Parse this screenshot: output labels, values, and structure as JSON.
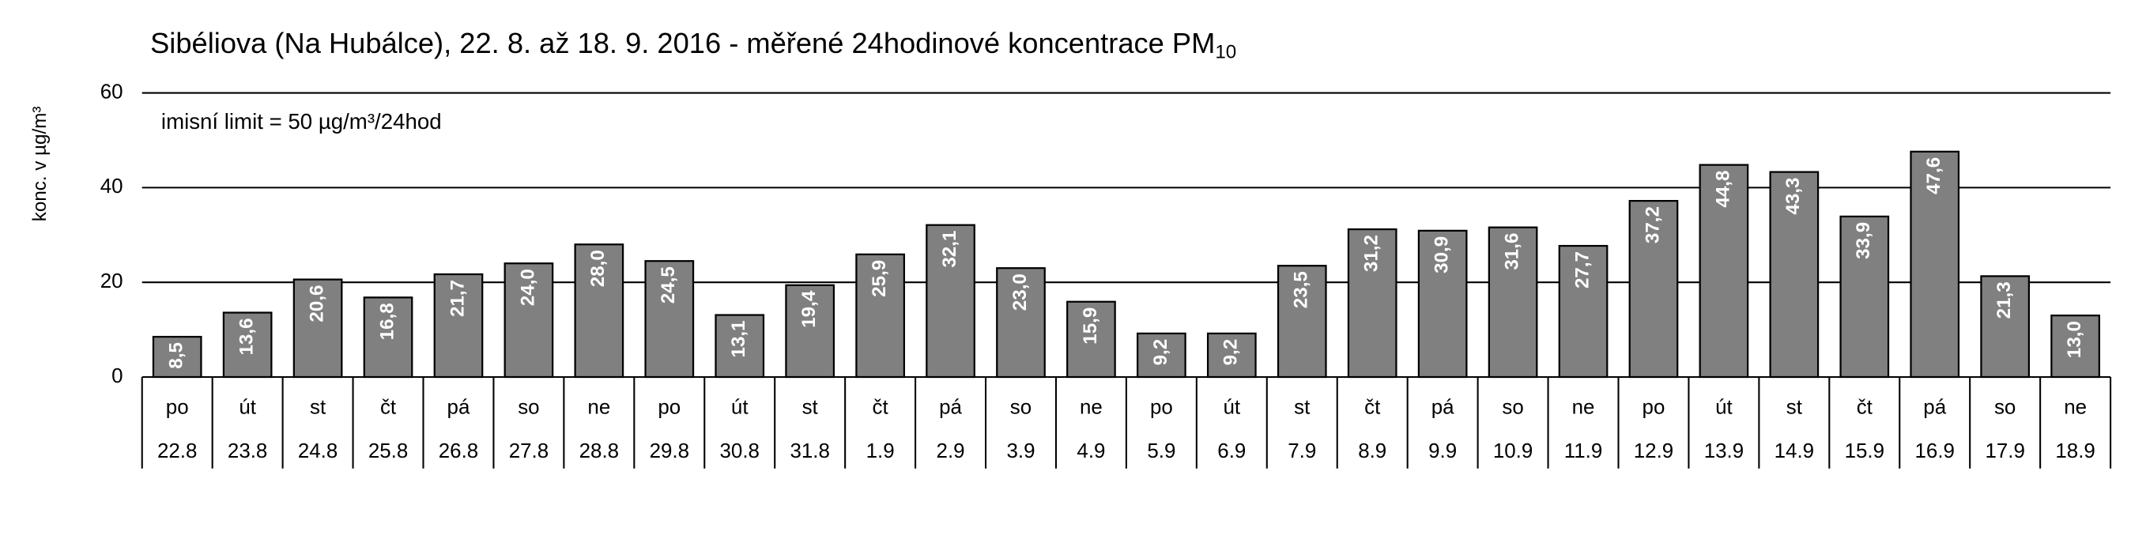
{
  "chart_data": {
    "type": "bar",
    "title": "Sibéliova (Na Hubálce), 22. 8. až 18. 9. 2016 - měřené 24hodinové koncentrace PM",
    "title_subscript": "10",
    "y_label": "konc. v µg/m³",
    "annotation": "imisní limit = 50 µg/m³/24hod",
    "weekdays": [
      "po",
      "út",
      "st",
      "čt",
      "pá",
      "so",
      "ne",
      "po",
      "út",
      "st",
      "čt",
      "pá",
      "so",
      "ne",
      "po",
      "út",
      "st",
      "čt",
      "pá",
      "so",
      "ne",
      "po",
      "út",
      "st",
      "čt",
      "pá",
      "so",
      "ne"
    ],
    "categories": [
      "22.8",
      "23.8",
      "24.8",
      "25.8",
      "26.8",
      "27.8",
      "28.8",
      "29.8",
      "30.8",
      "31.8",
      "1.9",
      "2.9",
      "3.9",
      "4.9",
      "5.9",
      "6.9",
      "7.9",
      "8.9",
      "9.9",
      "10.9",
      "11.9",
      "12.9",
      "13.9",
      "14.9",
      "15.9",
      "16.9",
      "17.9",
      "18.9"
    ],
    "values": [
      8.5,
      13.6,
      20.6,
      16.8,
      21.7,
      24.0,
      28.0,
      24.5,
      13.1,
      19.4,
      25.9,
      32.1,
      23.0,
      15.9,
      9.2,
      9.2,
      23.5,
      31.2,
      30.9,
      31.6,
      27.7,
      37.2,
      44.8,
      43.3,
      33.9,
      47.6,
      21.3,
      13.0
    ],
    "value_labels": [
      "8,5",
      "13,6",
      "20,6",
      "16,8",
      "21,7",
      "24,0",
      "28,0",
      "24,5",
      "13,1",
      "19,4",
      "25,9",
      "32,1",
      "23,0",
      "15,9",
      "9,2",
      "9,2",
      "23,5",
      "31,2",
      "30,9",
      "31,6",
      "27,7",
      "37,2",
      "44,8",
      "43,3",
      "33,9",
      "47,6",
      "21,3",
      "13,0"
    ],
    "color": "#808080",
    "ylim": [
      0,
      60
    ],
    "yticks": [
      0,
      20,
      40,
      60
    ],
    "grid": true
  }
}
